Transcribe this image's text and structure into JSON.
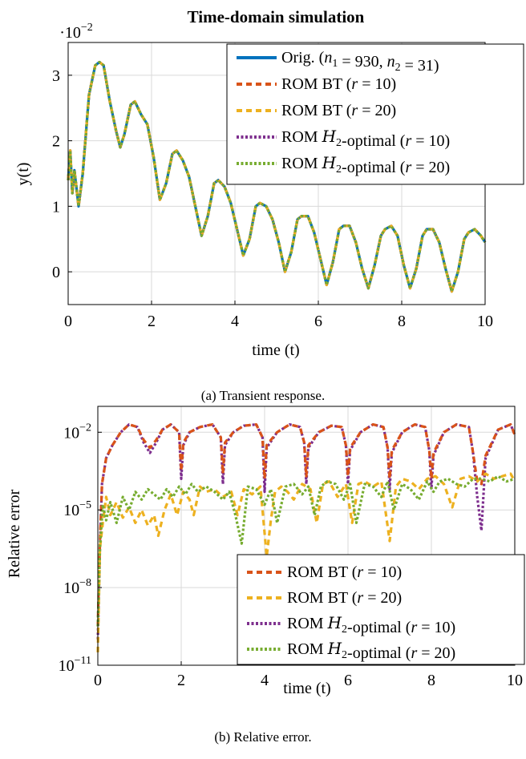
{
  "colors": {
    "orig": "#0072BD",
    "bt10": "#D95319",
    "bt20": "#EDB120",
    "h2_10": "#7E2F8E",
    "h2_20": "#77AC30",
    "grid": "#d9d9d9"
  },
  "chart_data": [
    {
      "type": "line",
      "title": "Time-domain simulation",
      "xlabel": "time (t)",
      "ylabel": "y(t)",
      "y_scale_label": "·10−2",
      "xlim": [
        0,
        10
      ],
      "ylim": [
        -0.5,
        3.5
      ],
      "x_ticks": [
        0,
        2,
        4,
        6,
        8,
        10
      ],
      "y_ticks": [
        0,
        1,
        2,
        3
      ],
      "grid": true,
      "legend_position": "top-right",
      "caption": "(a) Transient response.",
      "legend": [
        {
          "key": "orig",
          "label": "Orig. (n1 = 930, n2 = 31)"
        },
        {
          "key": "bt10",
          "label": "ROM BT (r = 10)"
        },
        {
          "key": "bt20",
          "label": "ROM BT (r = 20)"
        },
        {
          "key": "h2_10",
          "label": "ROM H2-optimal (r = 10)"
        },
        {
          "key": "h2_20",
          "label": "ROM H2-optimal (r = 20)"
        }
      ],
      "series": [
        {
          "name": "Orig. (n1 = 930, n2 = 31)",
          "x": [
            0,
            0.05,
            0.1,
            0.15,
            0.25,
            0.35,
            0.5,
            0.65,
            0.75,
            0.85,
            1.0,
            1.15,
            1.25,
            1.35,
            1.5,
            1.6,
            1.75,
            1.9,
            2.05,
            2.2,
            2.35,
            2.5,
            2.6,
            2.75,
            2.9,
            3.05,
            3.2,
            3.35,
            3.5,
            3.6,
            3.75,
            3.9,
            4.05,
            4.2,
            4.35,
            4.5,
            4.6,
            4.75,
            4.9,
            5.05,
            5.2,
            5.35,
            5.5,
            5.6,
            5.75,
            5.9,
            6.05,
            6.2,
            6.35,
            6.5,
            6.6,
            6.75,
            6.9,
            7.05,
            7.2,
            7.35,
            7.5,
            7.6,
            7.75,
            7.9,
            8.05,
            8.2,
            8.35,
            8.5,
            8.6,
            8.75,
            8.9,
            9.05,
            9.2,
            9.35,
            9.5,
            9.6,
            9.75,
            9.9,
            10.0
          ],
          "y": [
            1.4,
            1.85,
            1.2,
            1.55,
            1.0,
            1.5,
            2.7,
            3.15,
            3.2,
            3.15,
            2.6,
            2.15,
            1.9,
            2.1,
            2.55,
            2.6,
            2.4,
            2.25,
            1.75,
            1.1,
            1.35,
            1.8,
            1.85,
            1.7,
            1.45,
            1.0,
            0.55,
            0.85,
            1.35,
            1.4,
            1.3,
            1.05,
            0.65,
            0.25,
            0.5,
            1.0,
            1.05,
            1.0,
            0.8,
            0.45,
            0.0,
            0.3,
            0.8,
            0.85,
            0.85,
            0.6,
            0.2,
            -0.2,
            0.15,
            0.65,
            0.7,
            0.7,
            0.45,
            0.05,
            -0.25,
            0.1,
            0.55,
            0.65,
            0.7,
            0.55,
            0.1,
            -0.25,
            0.05,
            0.55,
            0.65,
            0.65,
            0.45,
            0.05,
            -0.3,
            0.0,
            0.5,
            0.6,
            0.65,
            0.55,
            0.45
          ]
        }
      ]
    },
    {
      "type": "line",
      "xlabel": "time (t)",
      "ylabel": "Relative error",
      "xlim": [
        0,
        10
      ],
      "ylim_log10": [
        -11,
        -1
      ],
      "y_scale": "log",
      "x_ticks": [
        0,
        2,
        4,
        6,
        8,
        10
      ],
      "y_ticks": [
        "10−2",
        "10−5",
        "10−8",
        "10−11"
      ],
      "grid": true,
      "legend_position": "bottom-right",
      "caption": "(b) Relative error.",
      "legend": [
        {
          "key": "bt10",
          "label": "ROM BT (r = 10)"
        },
        {
          "key": "bt20",
          "label": "ROM BT (r = 20)"
        },
        {
          "key": "h2_10",
          "label": "ROM H2-optimal (r = 10)"
        },
        {
          "key": "h2_20",
          "label": "ROM H2-optimal (r = 20)"
        }
      ],
      "series": [
        {
          "name": "ROM H2-optimal (r = 10)",
          "x": [
            0.0,
            0.05,
            0.1,
            0.2,
            0.35,
            0.55,
            0.75,
            0.95,
            1.1,
            1.25,
            1.4,
            1.55,
            1.75,
            1.95,
            2.0,
            2.05,
            2.2,
            2.45,
            2.75,
            2.95,
            3.0,
            3.05,
            3.25,
            3.5,
            3.8,
            3.95,
            4.0,
            4.05,
            4.3,
            4.6,
            4.85,
            4.95,
            5.0,
            5.05,
            5.3,
            5.6,
            5.85,
            5.95,
            6.0,
            6.05,
            6.3,
            6.6,
            6.85,
            6.95,
            7.0,
            7.05,
            7.3,
            7.6,
            7.85,
            7.95,
            8.0,
            8.05,
            8.3,
            8.6,
            8.9,
            9.0,
            9.1,
            9.2,
            9.3,
            9.6,
            9.9,
            10.0
          ],
          "y_log10": [
            -10.0,
            -6.5,
            -4.0,
            -3.0,
            -2.5,
            -2.0,
            -1.7,
            -1.8,
            -2.4,
            -2.8,
            -2.4,
            -1.9,
            -1.7,
            -2.0,
            -3.8,
            -2.5,
            -2.0,
            -1.8,
            -1.7,
            -2.2,
            -4.0,
            -2.5,
            -2.0,
            -1.75,
            -1.7,
            -2.2,
            -4.3,
            -2.6,
            -2.0,
            -1.7,
            -1.8,
            -2.4,
            -4.0,
            -2.6,
            -2.0,
            -1.75,
            -1.8,
            -2.5,
            -4.0,
            -2.7,
            -2.0,
            -1.7,
            -1.8,
            -2.6,
            -4.2,
            -2.8,
            -2.0,
            -1.7,
            -1.8,
            -2.7,
            -4.2,
            -2.9,
            -2.0,
            -1.7,
            -1.8,
            -2.8,
            -4.5,
            -5.8,
            -3.0,
            -1.9,
            -1.7,
            -2.1
          ]
        },
        {
          "name": "ROM BT (r = 10)",
          "x": [
            0.0,
            0.05,
            0.1,
            0.2,
            0.35,
            0.55,
            0.75,
            0.95,
            1.1,
            1.25,
            1.4,
            1.55,
            1.75,
            1.95,
            2.0,
            2.05,
            2.2,
            2.45,
            2.75,
            2.95,
            3.0,
            3.05,
            3.25,
            3.5,
            3.8,
            3.95,
            4.0,
            4.05,
            4.3,
            4.6,
            4.85,
            4.95,
            5.0,
            5.05,
            5.3,
            5.6,
            5.85,
            5.95,
            6.0,
            6.05,
            6.3,
            6.6,
            6.85,
            6.95,
            7.0,
            7.05,
            7.3,
            7.6,
            7.85,
            7.95,
            8.0,
            8.05,
            8.3,
            8.6,
            8.9,
            9.0,
            9.1,
            9.2,
            9.3,
            9.6,
            9.9,
            10.0
          ],
          "y_log10": [
            -9.5,
            -6.3,
            -4.0,
            -3.0,
            -2.5,
            -2.0,
            -1.7,
            -1.8,
            -2.3,
            -2.6,
            -2.3,
            -1.9,
            -1.7,
            -2.0,
            -3.5,
            -2.4,
            -2.0,
            -1.8,
            -1.7,
            -2.2,
            -3.6,
            -2.4,
            -2.0,
            -1.75,
            -1.7,
            -2.2,
            -3.8,
            -2.5,
            -2.0,
            -1.7,
            -1.8,
            -2.4,
            -3.7,
            -2.5,
            -2.0,
            -1.75,
            -1.8,
            -2.5,
            -3.7,
            -2.6,
            -2.0,
            -1.7,
            -1.8,
            -2.6,
            -3.8,
            -2.7,
            -2.0,
            -1.7,
            -1.8,
            -2.7,
            -3.8,
            -2.8,
            -2.0,
            -1.7,
            -1.8,
            -2.8,
            -3.9,
            -4.0,
            -2.9,
            -1.9,
            -1.7,
            -2.1
          ]
        },
        {
          "name": "ROM BT (r = 20)",
          "x": [
            0.0,
            0.05,
            0.12,
            0.2,
            0.3,
            0.45,
            0.6,
            0.75,
            0.9,
            1.05,
            1.2,
            1.35,
            1.45,
            1.6,
            1.75,
            1.9,
            2.05,
            2.2,
            2.3,
            2.45,
            2.6,
            2.8,
            3.0,
            3.2,
            3.35,
            3.5,
            3.7,
            3.9,
            4.05,
            4.15,
            4.25,
            4.4,
            4.55,
            4.7,
            4.9,
            5.1,
            5.25,
            5.4,
            5.55,
            5.75,
            5.95,
            6.1,
            6.25,
            6.4,
            6.6,
            6.8,
            7.0,
            7.15,
            7.3,
            7.5,
            7.7,
            7.9,
            8.1,
            8.3,
            8.5,
            8.7,
            8.9,
            9.1,
            9.3,
            9.5,
            9.7,
            9.9,
            10.0
          ],
          "y_log10": [
            -10.5,
            -6.5,
            -5.5,
            -4.5,
            -5.2,
            -4.7,
            -5.3,
            -4.9,
            -5.5,
            -5.0,
            -5.6,
            -5.2,
            -6.0,
            -5.0,
            -4.4,
            -5.2,
            -4.3,
            -4.6,
            -5.2,
            -4.1,
            -4.3,
            -4.2,
            -4.5,
            -4.3,
            -5.2,
            -4.2,
            -4.4,
            -4.1,
            -6.8,
            -5.4,
            -4.3,
            -4.1,
            -4.3,
            -4.6,
            -4.0,
            -4.2,
            -5.5,
            -4.0,
            -3.9,
            -4.5,
            -4.0,
            -5.5,
            -4.0,
            -3.9,
            -4.1,
            -3.9,
            -6.2,
            -4.1,
            -3.8,
            -3.9,
            -4.2,
            -3.8,
            -3.7,
            -4.0,
            -4.9,
            -3.8,
            -3.7,
            -3.9,
            -3.6,
            -3.8,
            -3.7,
            -3.6,
            -3.9
          ]
        },
        {
          "name": "ROM H2-optimal (r = 20)",
          "x": [
            0.0,
            0.05,
            0.12,
            0.2,
            0.3,
            0.45,
            0.6,
            0.75,
            0.9,
            1.05,
            1.2,
            1.35,
            1.5,
            1.65,
            1.8,
            1.95,
            2.1,
            2.25,
            2.4,
            2.6,
            2.8,
            3.0,
            3.15,
            3.3,
            3.45,
            3.6,
            3.8,
            4.0,
            4.15,
            4.3,
            4.5,
            4.7,
            4.9,
            5.05,
            5.2,
            5.35,
            5.5,
            5.7,
            5.9,
            6.05,
            6.2,
            6.4,
            6.6,
            6.8,
            6.95,
            7.1,
            7.3,
            7.5,
            7.7,
            7.9,
            8.05,
            8.2,
            8.4,
            8.6,
            8.8,
            9.0,
            9.2,
            9.4,
            9.6,
            9.8,
            10.0
          ],
          "y_log10": [
            -9.5,
            -6.5,
            -4.8,
            -5.4,
            -4.7,
            -5.5,
            -4.5,
            -5.0,
            -4.3,
            -4.6,
            -4.2,
            -4.4,
            -4.6,
            -4.2,
            -4.5,
            -4.1,
            -4.4,
            -4.0,
            -4.3,
            -4.1,
            -4.3,
            -4.6,
            -4.3,
            -5.2,
            -6.3,
            -4.1,
            -4.2,
            -4.8,
            -4.2,
            -5.5,
            -4.1,
            -4.0,
            -4.4,
            -4.1,
            -5.2,
            -4.1,
            -3.9,
            -4.0,
            -4.6,
            -4.0,
            -5.5,
            -4.0,
            -4.1,
            -4.5,
            -3.9,
            -5.0,
            -4.0,
            -4.2,
            -4.6,
            -3.9,
            -4.3,
            -3.9,
            -3.8,
            -4.0,
            -4.1,
            -3.8,
            -3.8,
            -3.9,
            -3.7,
            -3.9,
            -3.8
          ]
        }
      ]
    }
  ]
}
